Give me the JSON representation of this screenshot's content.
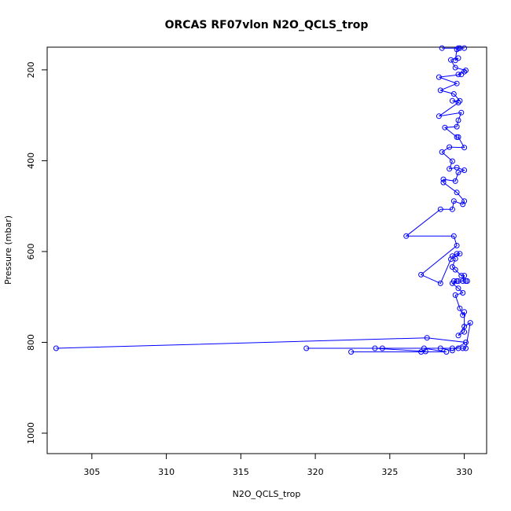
{
  "chart_data": {
    "type": "line",
    "title": "ORCAS RF07vlon N2O_QCLS_trop",
    "xlabel": "N2O_QCLS_trop",
    "ylabel": "Pressure (mbar)",
    "xlim": [
      302,
      331.5
    ],
    "ylim": [
      1045,
      150
    ],
    "y_inverted": true,
    "grid": false,
    "legend": "none",
    "marker": "open-circle",
    "x_ticks": [
      "305",
      "310",
      "315",
      "320",
      "325",
      "330"
    ],
    "y_ticks": [
      "200",
      "400",
      "600",
      "800",
      "1000"
    ],
    "series": [
      {
        "color": "#0000ff",
        "points": [
          [
            302.6,
            813
          ],
          [
            327.5,
            790
          ],
          [
            330.1,
            800
          ],
          [
            329.2,
            818
          ],
          [
            328.4,
            813
          ],
          [
            319.4,
            813
          ],
          [
            327.3,
            813
          ],
          [
            328.8,
            821
          ],
          [
            322.4,
            821
          ],
          [
            327.1,
            821
          ],
          [
            327.4,
            820
          ],
          [
            324.0,
            813
          ],
          [
            324.5,
            813
          ],
          [
            329.2,
            813
          ],
          [
            329.6,
            813
          ],
          [
            329.9,
            813
          ],
          [
            330.1,
            813
          ],
          [
            330.4,
            757
          ],
          [
            330.0,
            765
          ],
          [
            329.6,
            785
          ],
          [
            330.0,
            777
          ],
          [
            330.0,
            733
          ],
          [
            329.9,
            740
          ],
          [
            329.7,
            725
          ],
          [
            329.4,
            696
          ],
          [
            329.9,
            691
          ],
          [
            329.6,
            681
          ],
          [
            329.2,
            670
          ],
          [
            329.5,
            665
          ],
          [
            329.3,
            665
          ],
          [
            329.6,
            665
          ],
          [
            330.1,
            665
          ],
          [
            330.2,
            665
          ],
          [
            329.9,
            665
          ],
          [
            330.0,
            653
          ],
          [
            329.8,
            653
          ],
          [
            329.4,
            640
          ],
          [
            329.2,
            634
          ],
          [
            329.4,
            616
          ],
          [
            329.2,
            610
          ],
          [
            329.5,
            605
          ],
          [
            329.7,
            605
          ],
          [
            329.1,
            617
          ],
          [
            328.4,
            670
          ],
          [
            327.1,
            651
          ],
          [
            329.5,
            587
          ],
          [
            329.3,
            566
          ],
          [
            326.1,
            566
          ],
          [
            328.4,
            507
          ],
          [
            329.2,
            507
          ],
          [
            329.3,
            489
          ],
          [
            329.9,
            496
          ],
          [
            330.0,
            489
          ],
          [
            329.5,
            470
          ],
          [
            328.6,
            448
          ],
          [
            328.6,
            441
          ],
          [
            329.4,
            445
          ],
          [
            329.6,
            426
          ],
          [
            330.0,
            421
          ],
          [
            329.5,
            415
          ],
          [
            329.0,
            418
          ],
          [
            329.2,
            401
          ],
          [
            328.5,
            381
          ],
          [
            329.0,
            370
          ],
          [
            330.0,
            371
          ],
          [
            329.6,
            348
          ],
          [
            329.5,
            348
          ],
          [
            328.7,
            327
          ],
          [
            329.5,
            325
          ],
          [
            329.6,
            311
          ],
          [
            329.8,
            294
          ],
          [
            328.3,
            302
          ],
          [
            329.6,
            272
          ],
          [
            329.2,
            268
          ],
          [
            329.7,
            268
          ],
          [
            329.3,
            253
          ],
          [
            328.4,
            245
          ],
          [
            329.5,
            230
          ],
          [
            328.3,
            216
          ],
          [
            329.8,
            210
          ],
          [
            329.6,
            210
          ],
          [
            330.0,
            204
          ],
          [
            330.1,
            201
          ],
          [
            329.4,
            195
          ],
          [
            329.1,
            178
          ],
          [
            329.6,
            174
          ],
          [
            329.4,
            179
          ],
          [
            329.5,
            155
          ],
          [
            329.6,
            152
          ],
          [
            330.0,
            152
          ],
          [
            328.5,
            152
          ],
          [
            329.7,
            152
          ]
        ]
      }
    ]
  }
}
